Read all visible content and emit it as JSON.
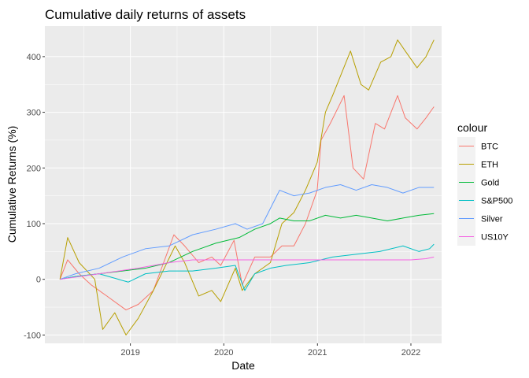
{
  "chart_data": {
    "type": "line",
    "title": "Cumulative daily returns of assets",
    "xlabel": "Date",
    "ylabel": "Cumulative Returns (%)",
    "xlim": [
      "2018-02-01",
      "2022-05-01"
    ],
    "ylim": [
      -115,
      455
    ],
    "x_ticks": [
      {
        "date": "2019-01-01",
        "label": "2019"
      },
      {
        "date": "2020-01-01",
        "label": "2020"
      },
      {
        "date": "2021-01-01",
        "label": "2021"
      },
      {
        "date": "2022-01-01",
        "label": "2022"
      }
    ],
    "y_ticks": [
      -100,
      0,
      100,
      200,
      300,
      400
    ],
    "grid": true,
    "legend": {
      "title": "colour",
      "position": "right"
    },
    "series": [
      {
        "name": "BTC",
        "color": "#F8766D",
        "points": [
          [
            "2018-04-01",
            0
          ],
          [
            "2018-05-01",
            35
          ],
          [
            "2018-06-15",
            10
          ],
          [
            "2018-08-01",
            -10
          ],
          [
            "2018-10-01",
            -30
          ],
          [
            "2018-12-15",
            -55
          ],
          [
            "2019-02-01",
            -45
          ],
          [
            "2019-04-01",
            -20
          ],
          [
            "2019-06-20",
            80
          ],
          [
            "2019-08-01",
            60
          ],
          [
            "2019-09-25",
            30
          ],
          [
            "2019-11-15",
            40
          ],
          [
            "2019-12-20",
            25
          ],
          [
            "2020-02-10",
            70
          ],
          [
            "2020-03-13",
            -10
          ],
          [
            "2020-05-01",
            40
          ],
          [
            "2020-07-01",
            40
          ],
          [
            "2020-08-15",
            60
          ],
          [
            "2020-10-01",
            60
          ],
          [
            "2020-11-15",
            100
          ],
          [
            "2020-12-31",
            160
          ],
          [
            "2021-01-15",
            250
          ],
          [
            "2021-02-20",
            280
          ],
          [
            "2021-04-15",
            330
          ],
          [
            "2021-05-20",
            200
          ],
          [
            "2021-06-30",
            180
          ],
          [
            "2021-08-15",
            280
          ],
          [
            "2021-09-20",
            270
          ],
          [
            "2021-11-10",
            330
          ],
          [
            "2021-12-10",
            290
          ],
          [
            "2022-01-25",
            270
          ],
          [
            "2022-03-01",
            290
          ],
          [
            "2022-04-01",
            310
          ]
        ]
      },
      {
        "name": "ETH",
        "color": "#B79F00",
        "points": [
          [
            "2018-04-01",
            0
          ],
          [
            "2018-05-01",
            75
          ],
          [
            "2018-06-15",
            30
          ],
          [
            "2018-08-15",
            0
          ],
          [
            "2018-09-15",
            -90
          ],
          [
            "2018-11-01",
            -60
          ],
          [
            "2018-12-15",
            -100
          ],
          [
            "2019-02-01",
            -70
          ],
          [
            "2019-04-01",
            -20
          ],
          [
            "2019-06-25",
            60
          ],
          [
            "2019-08-01",
            30
          ],
          [
            "2019-09-25",
            -30
          ],
          [
            "2019-11-15",
            -20
          ],
          [
            "2019-12-20",
            -40
          ],
          [
            "2020-02-15",
            20
          ],
          [
            "2020-03-13",
            -20
          ],
          [
            "2020-05-01",
            10
          ],
          [
            "2020-07-01",
            30
          ],
          [
            "2020-08-15",
            100
          ],
          [
            "2020-10-01",
            120
          ],
          [
            "2020-11-15",
            160
          ],
          [
            "2020-12-31",
            210
          ],
          [
            "2021-02-01",
            300
          ],
          [
            "2021-03-01",
            330
          ],
          [
            "2021-05-10",
            410
          ],
          [
            "2021-06-20",
            350
          ],
          [
            "2021-07-20",
            340
          ],
          [
            "2021-09-05",
            390
          ],
          [
            "2021-10-15",
            400
          ],
          [
            "2021-11-10",
            430
          ],
          [
            "2021-12-10",
            410
          ],
          [
            "2022-01-25",
            380
          ],
          [
            "2022-03-01",
            400
          ],
          [
            "2022-04-01",
            430
          ]
        ]
      },
      {
        "name": "Gold",
        "color": "#00BA38",
        "points": [
          [
            "2018-04-01",
            0
          ],
          [
            "2018-06-01",
            5
          ],
          [
            "2018-09-01",
            10
          ],
          [
            "2018-12-01",
            15
          ],
          [
            "2019-03-01",
            20
          ],
          [
            "2019-06-01",
            30
          ],
          [
            "2019-09-01",
            50
          ],
          [
            "2019-12-01",
            65
          ],
          [
            "2020-03-01",
            75
          ],
          [
            "2020-05-01",
            90
          ],
          [
            "2020-07-01",
            100
          ],
          [
            "2020-08-06",
            110
          ],
          [
            "2020-10-01",
            105
          ],
          [
            "2020-12-01",
            105
          ],
          [
            "2021-02-01",
            115
          ],
          [
            "2021-04-01",
            110
          ],
          [
            "2021-06-01",
            115
          ],
          [
            "2021-08-01",
            110
          ],
          [
            "2021-10-01",
            105
          ],
          [
            "2021-12-01",
            110
          ],
          [
            "2022-02-01",
            115
          ],
          [
            "2022-04-01",
            118
          ]
        ]
      },
      {
        "name": "S&P500",
        "color": "#00BFC4",
        "points": [
          [
            "2018-04-01",
            0
          ],
          [
            "2018-06-01",
            5
          ],
          [
            "2018-09-01",
            10
          ],
          [
            "2018-12-24",
            -5
          ],
          [
            "2019-03-01",
            10
          ],
          [
            "2019-06-01",
            15
          ],
          [
            "2019-09-01",
            15
          ],
          [
            "2019-12-01",
            20
          ],
          [
            "2020-02-15",
            25
          ],
          [
            "2020-03-23",
            -20
          ],
          [
            "2020-05-01",
            10
          ],
          [
            "2020-07-01",
            20
          ],
          [
            "2020-09-01",
            25
          ],
          [
            "2020-12-01",
            30
          ],
          [
            "2021-03-01",
            40
          ],
          [
            "2021-06-01",
            45
          ],
          [
            "2021-09-01",
            50
          ],
          [
            "2021-12-01",
            60
          ],
          [
            "2022-02-01",
            50
          ],
          [
            "2022-03-15",
            55
          ],
          [
            "2022-04-01",
            63
          ]
        ]
      },
      {
        "name": "Silver",
        "color": "#619CFF",
        "points": [
          [
            "2018-04-01",
            0
          ],
          [
            "2018-06-01",
            10
          ],
          [
            "2018-09-01",
            20
          ],
          [
            "2018-12-01",
            40
          ],
          [
            "2019-03-01",
            55
          ],
          [
            "2019-06-01",
            60
          ],
          [
            "2019-09-01",
            80
          ],
          [
            "2019-12-01",
            90
          ],
          [
            "2020-02-15",
            100
          ],
          [
            "2020-04-01",
            90
          ],
          [
            "2020-06-01",
            100
          ],
          [
            "2020-08-06",
            160
          ],
          [
            "2020-10-01",
            150
          ],
          [
            "2020-12-01",
            155
          ],
          [
            "2021-02-01",
            165
          ],
          [
            "2021-04-01",
            170
          ],
          [
            "2021-06-01",
            160
          ],
          [
            "2021-08-01",
            170
          ],
          [
            "2021-10-01",
            165
          ],
          [
            "2021-12-01",
            155
          ],
          [
            "2022-02-01",
            165
          ],
          [
            "2022-04-01",
            165
          ]
        ]
      },
      {
        "name": "US10Y",
        "color": "#F564E3",
        "points": [
          [
            "2018-04-01",
            0
          ],
          [
            "2018-09-01",
            10
          ],
          [
            "2019-02-01",
            20
          ],
          [
            "2019-06-01",
            30
          ],
          [
            "2019-09-01",
            35
          ],
          [
            "2020-03-01",
            35
          ],
          [
            "2020-12-01",
            35
          ],
          [
            "2021-06-01",
            35
          ],
          [
            "2022-01-01",
            35
          ],
          [
            "2022-03-01",
            37
          ],
          [
            "2022-04-01",
            40
          ]
        ]
      }
    ]
  }
}
